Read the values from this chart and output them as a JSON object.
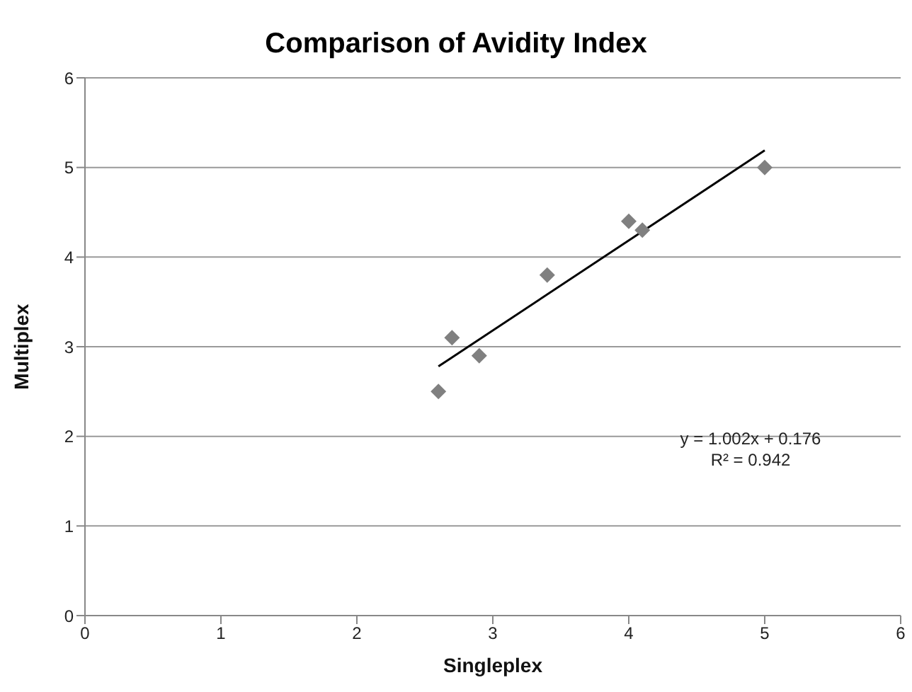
{
  "chart_data": {
    "type": "scatter",
    "title": "Comparison of Avidity Index",
    "xlabel": "Singleplex",
    "ylabel": "Multiplex",
    "xlim": [
      0,
      6
    ],
    "xticks": [
      0,
      1,
      2,
      3,
      4,
      5,
      6
    ],
    "ylim": [
      0,
      6
    ],
    "yticks": [
      0,
      1,
      2,
      3,
      4,
      5,
      6
    ],
    "grid": "y",
    "marker": "diamond",
    "series": [
      {
        "color": "#808080",
        "x": [
          2.6,
          2.7,
          2.9,
          3.4,
          4.0,
          4.1,
          5.0
        ],
        "values": [
          2.5,
          3.1,
          2.9,
          3.8,
          4.4,
          4.3,
          5.0
        ]
      },
      {
        "type": "line",
        "color": "#000000",
        "marker": "none",
        "x": [
          2.6,
          5.0
        ],
        "values": [
          2.78,
          5.19
        ]
      }
    ],
    "annotations": [
      "y = 1.002x + 0.176",
      "R² = 0.942"
    ]
  }
}
